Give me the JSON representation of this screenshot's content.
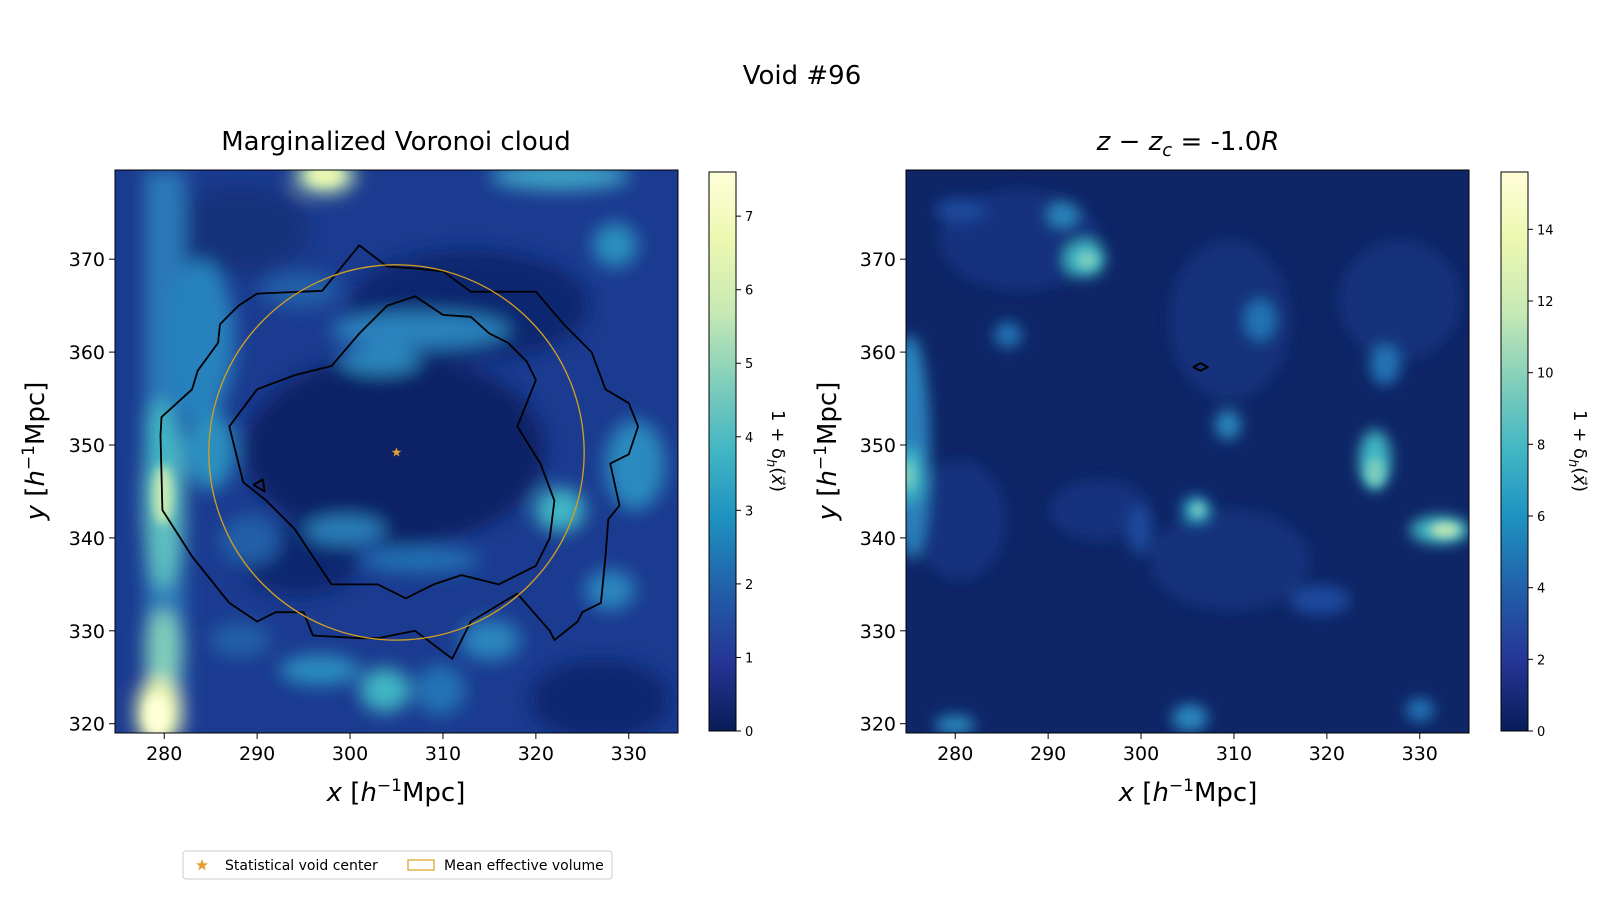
{
  "figure": {
    "suptitle": "Void #96"
  },
  "panels": [
    {
      "title": "Marginalized Voronoi cloud",
      "title_math": null,
      "xlabel": "x [h⁻¹Mpc]",
      "ylabel": "y [h⁻¹Mpc]",
      "colorbar_label": "1+δh(x⃗)",
      "colorbar_ticks": [
        "0",
        "1",
        "2",
        "3",
        "4",
        "5",
        "6",
        "7"
      ],
      "colorbar_range": [
        0,
        7.6
      ]
    },
    {
      "title": "",
      "title_math": {
        "a": "z",
        "op": " − ",
        "b": "z",
        "b_sub": "c",
        "eq": " = -1.0",
        "r": "R"
      },
      "xlabel": "x [h⁻¹Mpc]",
      "ylabel": "y [h⁻¹Mpc]",
      "colorbar_label": "1+δh(x⃗)",
      "colorbar_ticks": [
        "0",
        "2",
        "4",
        "6",
        "8",
        "10",
        "12",
        "14"
      ],
      "colorbar_range": [
        0,
        15.6
      ]
    }
  ],
  "legend": {
    "items": [
      {
        "label": "Statistical void center",
        "marker": "star",
        "color": "#e0a030"
      },
      {
        "label": "Mean effective volume",
        "marker": "rect-outline",
        "color": "#d4a020"
      }
    ]
  },
  "chart_data": [
    {
      "type": "heatmap",
      "title": "Marginalized Voronoi cloud",
      "xlabel": "x [h^-1 Mpc]",
      "ylabel": "y [h^-1 Mpc]",
      "xlim": [
        274.7,
        335.3
      ],
      "ylim": [
        319.0,
        379.6
      ],
      "xticks": [
        280,
        290,
        300,
        310,
        320,
        330
      ],
      "yticks": [
        320,
        330,
        340,
        350,
        360,
        370
      ],
      "colormap": "YlGnBu",
      "colorbar": {
        "label": "1+δ_h(x)",
        "min": 0,
        "max": 7.6,
        "ticks": [
          0,
          1,
          2,
          3,
          4,
          5,
          6,
          7
        ]
      },
      "void_center": {
        "x": 305.0,
        "y": 349.2
      },
      "effective_radius_circle": {
        "x": 305.0,
        "y": 349.2,
        "r": 20.2,
        "color": "#d4a020"
      },
      "contours": [
        {
          "level": "outer",
          "points": [
            [
              285.8,
              361.0
            ],
            [
              286,
              363
            ],
            [
              288,
              365
            ],
            [
              290,
              366.3
            ],
            [
              297,
              366.6
            ],
            [
              301,
              371.5
            ],
            [
              304,
              369.2
            ],
            [
              307,
              369
            ],
            [
              310,
              368.7
            ],
            [
              313,
              366.5
            ],
            [
              320,
              366.5
            ],
            [
              323,
              363
            ],
            [
              326,
              360
            ],
            [
              327.5,
              356
            ],
            [
              330,
              354.5
            ],
            [
              331,
              352
            ],
            [
              330,
              349
            ],
            [
              328,
              348
            ],
            [
              329,
              343.5
            ],
            [
              327.8,
              342
            ],
            [
              327.5,
              338
            ],
            [
              327,
              333
            ],
            [
              325,
              332
            ],
            [
              324.5,
              331
            ],
            [
              322,
              329
            ],
            [
              321.5,
              330
            ],
            [
              318,
              334
            ],
            [
              313,
              331
            ],
            [
              311,
              327
            ],
            [
              307,
              330
            ],
            [
              303,
              329.2
            ],
            [
              301,
              329.2
            ],
            [
              296,
              329.5
            ],
            [
              295,
              332
            ],
            [
              292,
              332
            ],
            [
              290,
              331
            ],
            [
              287,
              333
            ],
            [
              283,
              338
            ],
            [
              279.8,
              343
            ],
            [
              279.6,
              351
            ],
            [
              279.7,
              353
            ],
            [
              283,
              356
            ],
            [
              283.6,
              358
            ],
            [
              285.8,
              361.0
            ]
          ]
        },
        {
          "level": "inner",
          "points": [
            [
              290,
              356
            ],
            [
              294,
              357.5
            ],
            [
              298,
              358.5
            ],
            [
              301,
              362
            ],
            [
              304,
              365
            ],
            [
              307,
              366
            ],
            [
              310,
              364
            ],
            [
              313,
              363.8
            ],
            [
              315,
              362
            ],
            [
              317,
              361
            ],
            [
              319,
              359
            ],
            [
              320,
              357
            ],
            [
              318,
              352
            ],
            [
              320.5,
              348
            ],
            [
              322,
              344
            ],
            [
              321.5,
              340
            ],
            [
              320,
              337
            ],
            [
              316,
              335
            ],
            [
              312,
              336
            ],
            [
              309,
              335
            ],
            [
              306,
              333.5
            ],
            [
              303,
              335
            ],
            [
              298,
              335
            ],
            [
              296,
              338
            ],
            [
              294,
              341
            ],
            [
              291,
              344
            ],
            [
              288.5,
              346
            ],
            [
              287,
              352
            ],
            [
              290,
              356
            ]
          ]
        },
        {
          "level": "small",
          "points": [
            [
              289.6,
              345.7
            ],
            [
              290.6,
              346.3
            ],
            [
              290.8,
              345.0
            ],
            [
              289.6,
              345.7
            ]
          ]
        }
      ],
      "hotspots_note": "bright filament along x≈279-281; peak 1+δ≈7.5 near (280,320) and (297,379)"
    },
    {
      "type": "heatmap",
      "title": "z - z_c = -1.0R",
      "xlabel": "x [h^-1 Mpc]",
      "ylabel": "y [h^-1 Mpc]",
      "xlim": [
        274.7,
        335.3
      ],
      "ylim": [
        319.0,
        379.6
      ],
      "xticks": [
        280,
        290,
        300,
        310,
        320,
        330
      ],
      "yticks": [
        320,
        330,
        340,
        350,
        360,
        370
      ],
      "colormap": "YlGnBu",
      "colorbar": {
        "label": "1+δ_h(x)",
        "min": 0,
        "max": 15.6,
        "ticks": [
          0,
          2,
          4,
          6,
          8,
          10,
          12,
          14
        ]
      },
      "contours": [
        {
          "level": "small",
          "points": [
            [
              305.6,
              358.4
            ],
            [
              306.4,
              358.8
            ],
            [
              307.2,
              358.4
            ],
            [
              306.4,
              358.0
            ],
            [
              305.6,
              358.4
            ]
          ]
        }
      ]
    }
  ]
}
